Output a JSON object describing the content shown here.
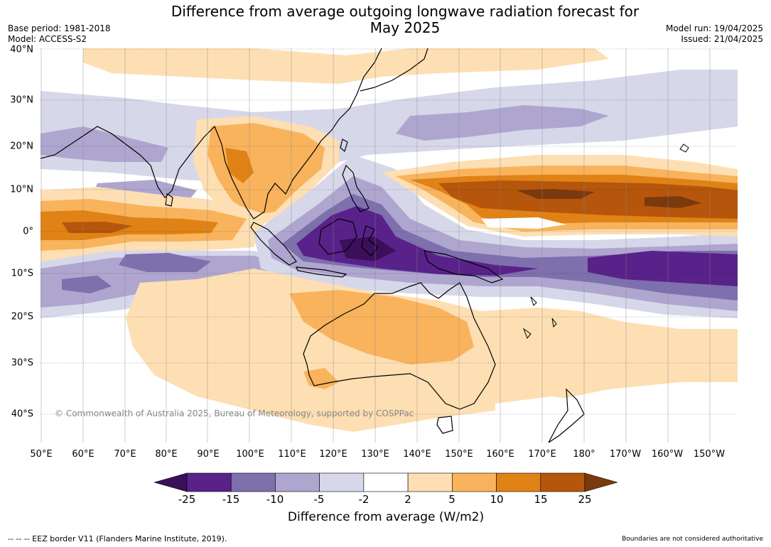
{
  "header": {
    "title": "Difference from average outgoing longwave radiation forecast for\nMay 2025",
    "base_period": "Base period: 1981-2018",
    "model": "Model: ACCESS-S2",
    "model_run": "Model run: 19/04/2025",
    "issued": "Issued: 21/04/2025"
  },
  "map": {
    "copyright": "© Commonwealth of Australia 2025, Bureau of Meteorology, supported by COSPPac",
    "lat_labels": [
      "40°N",
      "30°N",
      "20°N",
      "10°N",
      "0°",
      "10°S",
      "20°S",
      "30°S",
      "40°S"
    ],
    "lon_labels": [
      "50°E",
      "60°E",
      "70°E",
      "80°E",
      "90°E",
      "100°E",
      "110°E",
      "120°E",
      "130°E",
      "140°E",
      "150°E",
      "160°E",
      "170°E",
      "180°",
      "170°W",
      "160°W",
      "150°W"
    ]
  },
  "legend": {
    "ticks": [
      "-25",
      "-15",
      "-10",
      "-5",
      "-2",
      "2",
      "5",
      "10",
      "15",
      "25"
    ],
    "colors": [
      "#3b0f5a",
      "#58228a",
      "#7e6fad",
      "#aea6cf",
      "#d7d7ea",
      "#ffffff",
      "#fddfb3",
      "#f8b35c",
      "#e08215",
      "#b5560c",
      "#7a3a0d"
    ],
    "label": "Difference from average (W/m2)"
  },
  "footer": {
    "eez_note": "--  --  -- EEZ border V11 (Flanders Marine Institute, 2019).",
    "boundaries_note": "Boundaries are not considered authoritative"
  }
}
